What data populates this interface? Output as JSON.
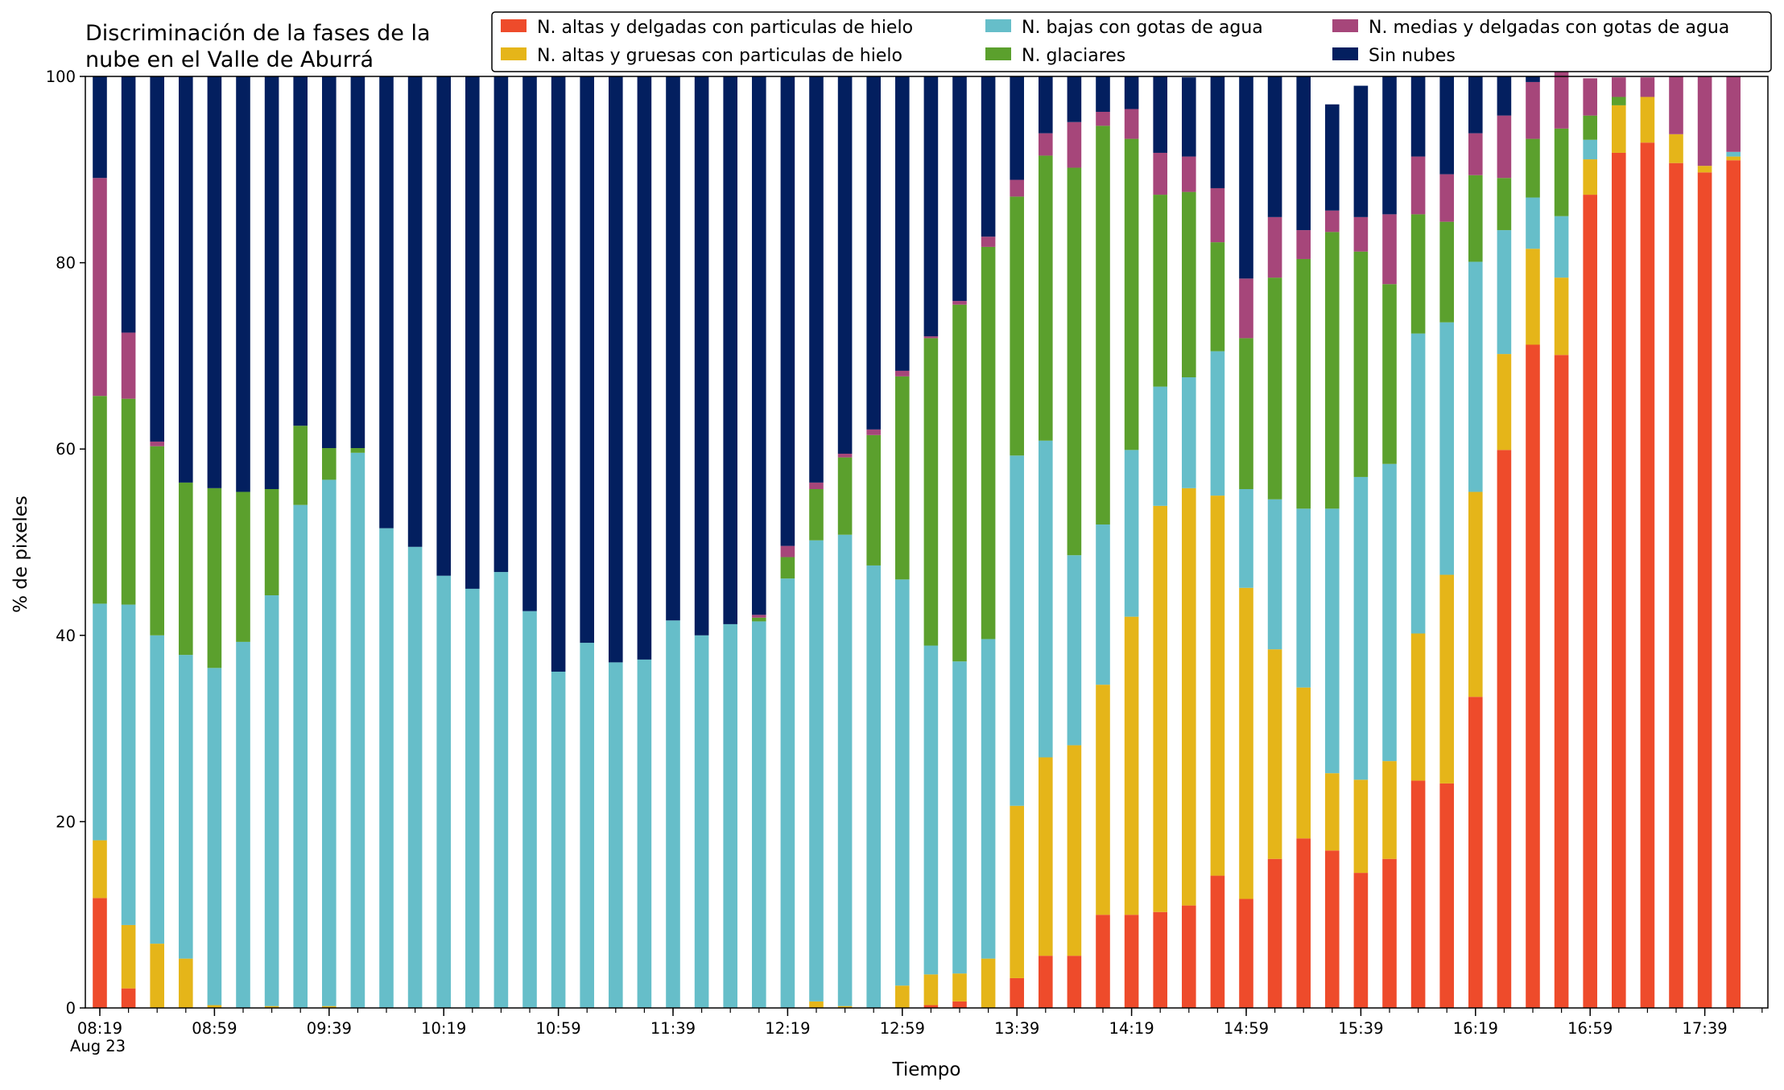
{
  "chart_data": {
    "type": "bar",
    "stacked": true,
    "title": "Discriminación de la fases de la nube en el Valle de Aburrá",
    "title_lines": [
      "Discriminación de la fases de la",
      "nube en el Valle de Aburrá"
    ],
    "xlabel": "Tiempo",
    "ylabel": "% de pixeles",
    "ylim": [
      0,
      100
    ],
    "yticks": [
      0,
      20,
      40,
      60,
      80,
      100
    ],
    "xtick_labels": [
      "08:19",
      "08:59",
      "09:39",
      "10:19",
      "10:59",
      "11:39",
      "12:19",
      "12:59",
      "13:39",
      "14:19",
      "14:59",
      "15:39",
      "16:19",
      "16:59",
      "17:39"
    ],
    "date_label": "Aug 23",
    "categories": [
      "08:19",
      "08:29",
      "08:39",
      "08:49",
      "08:59",
      "09:09",
      "09:19",
      "09:29",
      "09:39",
      "09:49",
      "09:59",
      "10:09",
      "10:19",
      "10:29",
      "10:39",
      "10:49",
      "10:59",
      "11:09",
      "11:19",
      "11:29",
      "11:39",
      "11:49",
      "11:59",
      "12:09",
      "12:19",
      "12:29",
      "12:39",
      "12:49",
      "12:59",
      "13:09",
      "13:19",
      "13:29",
      "13:39",
      "13:49",
      "13:59",
      "14:09",
      "14:19",
      "14:29",
      "14:39",
      "14:49",
      "14:59",
      "15:09",
      "15:19",
      "15:29",
      "15:39",
      "15:49",
      "15:59",
      "16:09",
      "16:19",
      "16:29",
      "16:39",
      "16:49",
      "16:59",
      "17:09",
      "17:19",
      "17:29",
      "17:39",
      "17:49"
    ],
    "legend_position": "top-right",
    "series": [
      {
        "name": "N. altas y delgadas con particulas de hielo",
        "color": "#ee4b2b",
        "values": [
          11.8,
          2.1,
          0,
          0,
          0,
          0,
          0,
          0,
          0,
          0,
          0,
          0,
          0,
          0,
          0,
          0,
          0,
          0,
          0,
          0,
          0,
          0,
          0,
          0,
          0,
          0,
          0,
          0,
          0,
          0.3,
          0.7,
          0,
          3.2,
          5.6,
          5.6,
          10,
          10,
          10.3,
          11,
          14.2,
          11.7,
          16,
          18.2,
          16.9,
          14.5,
          16,
          24.4,
          24.1,
          33.4,
          59.9,
          71.2,
          70.1,
          87.3,
          91.8,
          92.9,
          90.7,
          89.7,
          91
        ]
      },
      {
        "name": "N. altas y gruesas con particulas de hielo",
        "color": "#e5b519",
        "values": [
          6.2,
          6.8,
          6.9,
          5.3,
          0.3,
          0,
          0.2,
          0,
          0.2,
          0,
          0,
          0,
          0,
          0,
          0,
          0,
          0,
          0,
          0,
          0,
          0,
          0,
          0,
          0,
          0,
          0.7,
          0.2,
          0,
          2.4,
          3.3,
          3,
          5.3,
          18.5,
          21.3,
          22.6,
          24.7,
          32,
          43.6,
          44.8,
          40.8,
          33.4,
          22.5,
          16.2,
          8.3,
          10,
          10.5,
          15.8,
          22.4,
          22,
          10.3,
          10.3,
          8.3,
          3.8,
          5.1,
          4.9,
          3.1,
          0.7,
          0.4
        ]
      },
      {
        "name": "N. bajas con gotas de agua",
        "color": "#66bec9",
        "values": [
          25.4,
          34.4,
          33.1,
          32.6,
          36.2,
          39.3,
          44.1,
          54,
          56.5,
          59.6,
          51.5,
          49.5,
          46.4,
          45,
          46.8,
          42.6,
          36.1,
          39.2,
          37.1,
          37.4,
          41.6,
          40,
          41.2,
          41.5,
          46.1,
          49.5,
          50.6,
          47.5,
          43.6,
          35.3,
          33.5,
          34.3,
          37.6,
          34,
          20.4,
          17.2,
          17.9,
          12.8,
          11.9,
          15.5,
          10.6,
          16.1,
          19.2,
          28.4,
          32.5,
          31.9,
          32.2,
          27.1,
          24.7,
          13.3,
          5.5,
          6.6,
          2.1,
          0,
          0,
          0,
          0,
          0.5
        ]
      },
      {
        "name": "N. glaciares",
        "color": "#5ba02d",
        "values": [
          22.3,
          22.1,
          20.3,
          18.5,
          19.3,
          16.1,
          11.4,
          8.5,
          3.4,
          0.5,
          0,
          0,
          0,
          0,
          0,
          0,
          0,
          0,
          0,
          0,
          0,
          0,
          0,
          0.4,
          2.3,
          5.5,
          8.3,
          14,
          21.8,
          33,
          38.3,
          42.1,
          27.8,
          30.6,
          41.6,
          42.8,
          33.4,
          20.6,
          19.9,
          11.7,
          16.2,
          23.8,
          26.8,
          29.7,
          24.2,
          19.3,
          12.8,
          10.8,
          9.3,
          5.6,
          6.3,
          9.4,
          2.6,
          0.9,
          0,
          0,
          0,
          0
        ]
      },
      {
        "name": "N. medias y delgadas con gotas de agua",
        "color": "#a6467a",
        "values": [
          23.4,
          7.1,
          0.5,
          0,
          0,
          0,
          0,
          0,
          0,
          0,
          0,
          0,
          0,
          0,
          0,
          0,
          0,
          0,
          0,
          0,
          0,
          0,
          0,
          0.3,
          1.2,
          0.7,
          0.4,
          0.6,
          0.6,
          0.2,
          0.4,
          1.1,
          1.8,
          2.4,
          4.9,
          1.5,
          3.2,
          4.5,
          3.8,
          5.8,
          6.4,
          6.5,
          3.1,
          2.3,
          3.7,
          7.5,
          6.2,
          5.1,
          4.5,
          6.7,
          6.1,
          9.1,
          4,
          2.1,
          2.1,
          6.2,
          9.6,
          8.1
        ]
      },
      {
        "name": "Sin nubes",
        "color": "#031f5f",
        "values": [
          10.9,
          27.5,
          39.2,
          43.6,
          44.2,
          44.6,
          44.3,
          37.5,
          39.9,
          39.9,
          48.5,
          50.5,
          53.6,
          55,
          53.2,
          57.4,
          63.9,
          60.8,
          62.9,
          62.6,
          58.4,
          60,
          58.8,
          57.8,
          50.4,
          43.6,
          40.5,
          37.9,
          31.6,
          27.9,
          24.1,
          17.2,
          11.1,
          6.1,
          4.9,
          3.8,
          3.5,
          8.2,
          8.5,
          12,
          21.7,
          15.1,
          16.5,
          11.4,
          14.1,
          14.8,
          8.6,
          10.5,
          6.1,
          4.2,
          0.6,
          0.5,
          0,
          0,
          0,
          0,
          0,
          0
        ]
      }
    ]
  }
}
